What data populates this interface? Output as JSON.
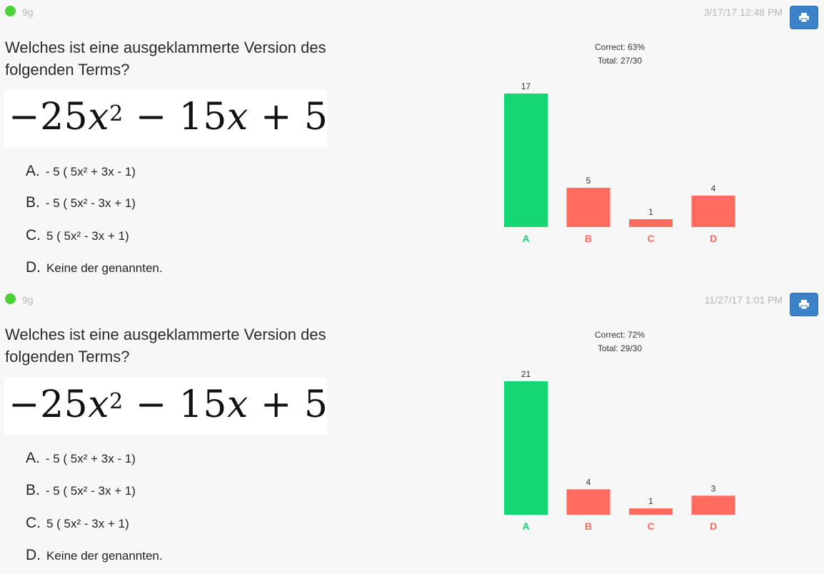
{
  "cards": [
    {
      "group": "9g",
      "timestamp": "3/17/17 12:48 PM",
      "question": "Welches ist eine ausgeklammerte Version des folgenden Terms?",
      "formula": {
        "coef": "−25",
        "var": "x",
        "exp": "2",
        "mid": " − 15",
        "var2": "x",
        "tail": " + 5"
      },
      "options": [
        {
          "letter": "A.",
          "text": "- 5 ( 5x² + 3x - 1)"
        },
        {
          "letter": "B.",
          "text": "- 5 ( 5x² - 3x + 1)"
        },
        {
          "letter": "C.",
          "text": "5 ( 5x² - 3x + 1)"
        },
        {
          "letter": "D.",
          "text": "Keine der genannten."
        }
      ],
      "stats": {
        "correct": "Correct: 63%",
        "total": "Total: 27/30"
      },
      "status_color": "#4cd137"
    },
    {
      "group": "9g",
      "timestamp": "11/27/17 1:01 PM",
      "question": "Welches ist eine ausgeklammerte Version des folgenden Terms?",
      "formula": {
        "coef": "−25",
        "var": "x",
        "exp": "2",
        "mid": " − 15",
        "var2": "x",
        "tail": " + 5"
      },
      "options": [
        {
          "letter": "A.",
          "text": "- 5 ( 5x² + 3x - 1)"
        },
        {
          "letter": "B.",
          "text": "- 5 ( 5x² - 3x + 1)"
        },
        {
          "letter": "C.",
          "text": "5 ( 5x² - 3x + 1)"
        },
        {
          "letter": "D.",
          "text": "Keine der genannten."
        }
      ],
      "stats": {
        "correct": "Correct: 72%",
        "total": "Total: 29/30"
      },
      "status_color": "#4cd137"
    }
  ],
  "chart_data": [
    {
      "type": "bar",
      "categories": [
        "A",
        "B",
        "C",
        "D"
      ],
      "values": [
        17,
        5,
        1,
        4
      ],
      "correct_category": "A",
      "ylim": [
        0,
        17
      ]
    },
    {
      "type": "bar",
      "categories": [
        "A",
        "B",
        "C",
        "D"
      ],
      "values": [
        21,
        4,
        1,
        3
      ],
      "correct_category": "A",
      "ylim": [
        0,
        21
      ]
    }
  ],
  "colors": {
    "correct": "#14d672",
    "incorrect": "#ff6b5e",
    "button": "#3b82c8",
    "status": "#4cd137"
  },
  "icons": {
    "print": "print-icon",
    "status": "status-dot"
  }
}
